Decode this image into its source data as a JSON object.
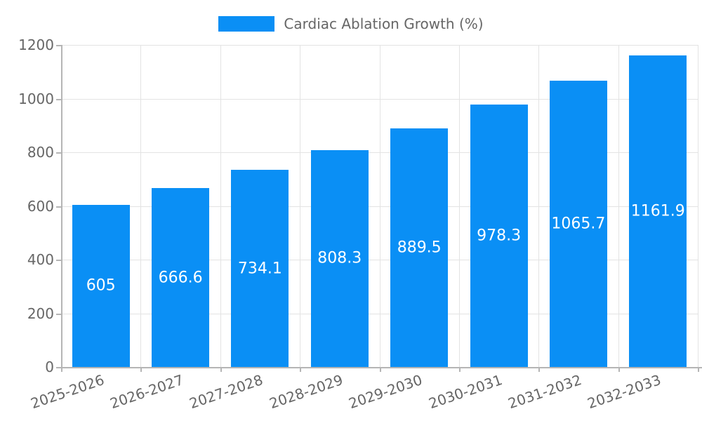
{
  "legend": {
    "label": "Cardiac Ablation Growth (%)"
  },
  "colors": {
    "bar": "#0a8ff5",
    "grid": "#e3e3e3",
    "axis": "#b5b5b5",
    "tick_text": "#666666",
    "bar_label_text": "#ffffff"
  },
  "chart_data": {
    "type": "bar",
    "title": "Cardiac Ablation Growth (%)",
    "legend_position": "top",
    "categories": [
      "2025-2026",
      "2026-2027",
      "2027-2028",
      "2028-2029",
      "2029-2030",
      "2030-2031",
      "2031-2032",
      "2032-2033"
    ],
    "values": [
      605,
      666.6,
      734.1,
      808.3,
      889.5,
      978.3,
      1065.7,
      1161.9
    ],
    "value_labels": [
      "605",
      "666.6",
      "734.1",
      "808.3",
      "889.5",
      "978.3",
      "1065.7",
      "1161.9"
    ],
    "xlabel": "",
    "ylabel": "",
    "ylim": [
      0,
      1200
    ],
    "yticks": [
      0,
      200,
      400,
      600,
      800,
      1000,
      1200
    ],
    "grid": true
  }
}
